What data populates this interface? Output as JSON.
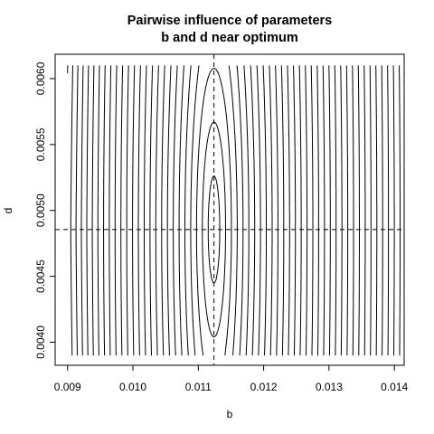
{
  "chart_data": {
    "type": "contour",
    "title": [
      "Pairwise influence of parameters",
      "b and d near optimum"
    ],
    "xlabel": "b",
    "ylabel": "d",
    "xlim": [
      0.00881,
      0.01415
    ],
    "ylim": [
      0.003825,
      0.006185
    ],
    "data_xrange": [
      0.009,
      0.0141
    ],
    "data_yrange": [
      0.0039,
      0.0061
    ],
    "xticks": [
      0.009,
      0.01,
      0.011,
      0.012,
      0.013,
      0.014
    ],
    "xtick_labels": [
      "0.009",
      "0.010",
      "0.011",
      "0.012",
      "0.013",
      "0.014"
    ],
    "yticks": [
      0.004,
      0.0045,
      0.005,
      0.0055,
      0.006
    ],
    "ytick_labels": [
      "0.0040",
      "0.0045",
      "0.0050",
      "0.0055",
      "0.0060"
    ],
    "optimum": {
      "b": 0.01124,
      "d": 0.004855
    },
    "reference_lines": {
      "vertical_b": 0.01124,
      "horizontal_d": 0.004855,
      "style": "dashed"
    },
    "contour_levels": 80,
    "line_color": "#000000",
    "grid": false,
    "legend": "none"
  }
}
